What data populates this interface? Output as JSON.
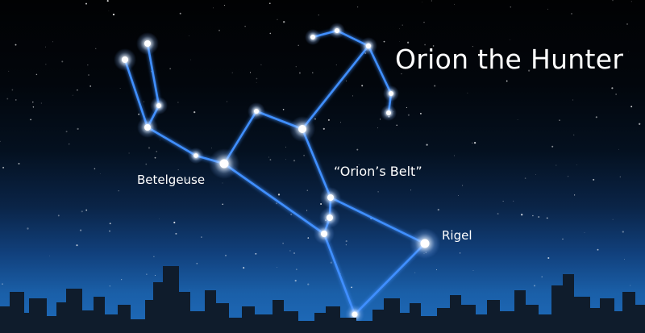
{
  "title": "Orion the Hunter",
  "labels": {
    "betelgeuse": "Betelgeuse",
    "belt": "“Orion’s Belt”",
    "rigel": "Rigel"
  },
  "colors": {
    "constellation_line": "#3f8fff",
    "star_core": "#ffffff",
    "skyline": "#0f1c2c"
  }
}
